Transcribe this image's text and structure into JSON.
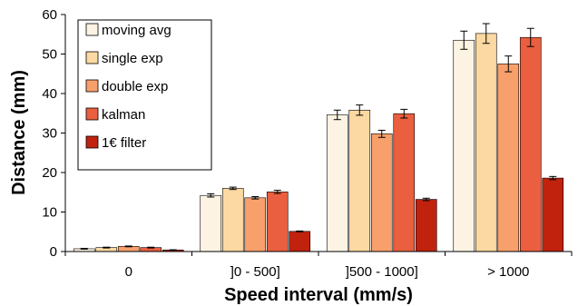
{
  "chart_data": {
    "type": "bar",
    "title": "",
    "xlabel": "Speed interval (mm/s)",
    "ylabel": "Distance (mm)",
    "ylim": [
      0,
      60
    ],
    "yticks": [
      0,
      10,
      20,
      30,
      40,
      50,
      60
    ],
    "categories": [
      "0",
      "]0 - 500]",
      "]500 - 1000]",
      "> 1000"
    ],
    "grid": false,
    "legend_position": "top-left",
    "series": [
      {
        "name": "moving avg",
        "color": "#FDF3E3",
        "values": [
          0.7,
          14.2,
          34.6,
          53.5
        ],
        "errors": [
          0.1,
          0.4,
          1.2,
          2.3
        ]
      },
      {
        "name": "single exp",
        "color": "#FCD9A2",
        "values": [
          1.0,
          16.0,
          35.8,
          55.2
        ],
        "errors": [
          0.1,
          0.3,
          1.3,
          2.5
        ]
      },
      {
        "name": "double exp",
        "color": "#F8A06C",
        "values": [
          1.3,
          13.6,
          29.8,
          47.5
        ],
        "errors": [
          0.1,
          0.3,
          0.9,
          2.0
        ]
      },
      {
        "name": "kalman",
        "color": "#EA5F3F",
        "values": [
          1.0,
          15.1,
          34.9,
          54.2
        ],
        "errors": [
          0.1,
          0.4,
          1.1,
          2.3
        ]
      },
      {
        "name": "1€ filter",
        "color": "#C0220E",
        "values": [
          0.4,
          5.1,
          13.2,
          18.6
        ],
        "errors": [
          0.05,
          0.1,
          0.3,
          0.4
        ]
      }
    ]
  }
}
